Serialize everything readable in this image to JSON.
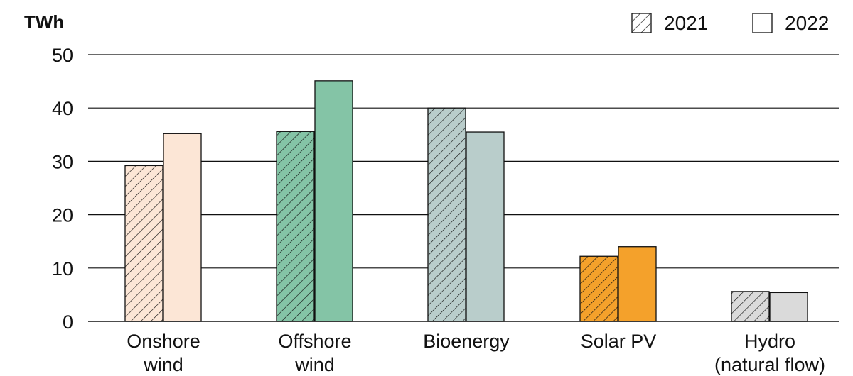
{
  "chart_data": {
    "type": "bar",
    "ylabel": "TWh",
    "ylim": [
      0,
      50
    ],
    "yticks": [
      0,
      10,
      20,
      30,
      40,
      50
    ],
    "grid": true,
    "legend_position": "top-right",
    "categories": [
      [
        "Onshore",
        "wind"
      ],
      [
        "Offshore",
        "wind"
      ],
      [
        "Bioenergy"
      ],
      [
        "Solar PV"
      ],
      [
        "Hydro",
        "(natural flow)"
      ]
    ],
    "category_colors": [
      "#fce6d6",
      "#84c4a6",
      "#b9cdcb",
      "#f4a12b",
      "#dadada"
    ],
    "series": [
      {
        "name": "2021",
        "pattern": "hatched",
        "values": [
          29.2,
          35.6,
          40.0,
          12.2,
          5.6
        ]
      },
      {
        "name": "2022",
        "pattern": "solid",
        "values": [
          35.2,
          45.1,
          35.5,
          14.0,
          5.4
        ]
      }
    ]
  }
}
